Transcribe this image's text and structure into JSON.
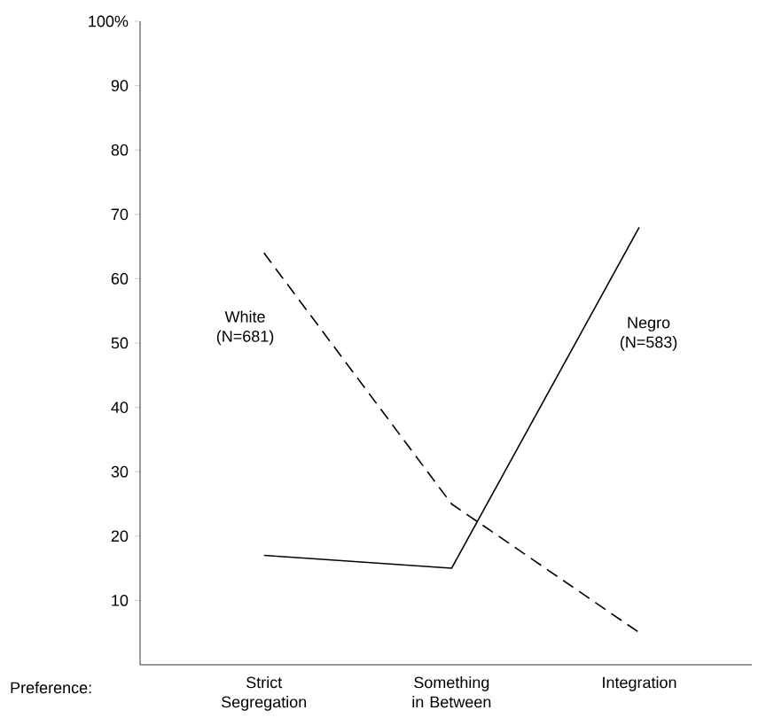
{
  "chart_data": {
    "type": "line",
    "xlabel": "Preference:",
    "categories": [
      "Strict Segregation",
      "Something in Between",
      "Integration"
    ],
    "ylim": [
      0,
      100
    ],
    "yticks": [
      10,
      20,
      30,
      40,
      50,
      60,
      70,
      80,
      90,
      {
        "value": 100,
        "label": "100%"
      }
    ],
    "marker": "none",
    "series": [
      {
        "name": "White (N=681)",
        "color": "#000000",
        "line_style": "dashed",
        "values": [
          64,
          25,
          5
        ]
      },
      {
        "name": "Negro (N=583)",
        "color": "#000000",
        "line_style": "solid",
        "values": [
          17,
          15,
          68
        ]
      }
    ]
  }
}
